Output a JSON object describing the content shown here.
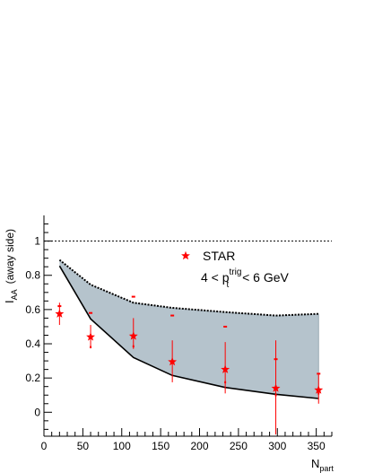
{
  "chart_data": {
    "type": "scatter",
    "title": "",
    "xlabel": "N",
    "xlabel_sub": "part",
    "ylabel": "I",
    "ylabel_sub": "AA",
    "ylabel_suffix": "(away side)",
    "xlim": [
      0,
      370
    ],
    "ylim": [
      -0.14,
      1.15
    ],
    "xticks": [
      0,
      50,
      100,
      150,
      200,
      250,
      300,
      350
    ],
    "yticks": [
      0,
      0.2,
      0.4,
      0.6,
      0.8,
      1
    ],
    "reference_line": {
      "y": 1,
      "style": "dotted"
    },
    "band": {
      "x": [
        20,
        60,
        115,
        165,
        233,
        298,
        353
      ],
      "upper": [
        0.89,
        0.745,
        0.64,
        0.61,
        0.585,
        0.565,
        0.575
      ],
      "lower": [
        0.855,
        0.545,
        0.32,
        0.215,
        0.145,
        0.105,
        0.08
      ],
      "color": "#b5c3cc"
    },
    "series": [
      {
        "name": "STAR",
        "marker": "star",
        "color": "#ff0000",
        "points": [
          {
            "x": 20,
            "y": 0.575,
            "err_low": 0.065,
            "err_high": 0.065,
            "sys_high": 0.62,
            "sys_low": 0.58
          },
          {
            "x": 60,
            "y": 0.44,
            "err_low": 0.06,
            "err_high": 0.07,
            "sys_high": 0.58,
            "sys_low": 0.38
          },
          {
            "x": 115,
            "y": 0.445,
            "err_low": 0.075,
            "err_high": 0.105,
            "sys_high": 0.675,
            "sys_low": 0.385
          },
          {
            "x": 165,
            "y": 0.295,
            "err_low": 0.12,
            "err_high": 0.125,
            "sys_high": 0.565,
            "sys_low": 0.295
          },
          {
            "x": 233,
            "y": 0.25,
            "err_low": 0.14,
            "err_high": 0.16,
            "sys_high": 0.5,
            "sys_low": 0.175
          },
          {
            "x": 298,
            "y": 0.14,
            "err_low": 0.27,
            "err_high": 0.28,
            "sys_high": 0.31,
            "sys_low": 0.1
          },
          {
            "x": 353,
            "y": 0.13,
            "err_low": 0.08,
            "err_high": 0.09,
            "sys_high": 0.225,
            "sys_low": 0.11
          }
        ]
      }
    ],
    "legend": {
      "position": "top-right",
      "label": "STAR",
      "extra_line": "4 < p",
      "extra_sup": "trig",
      "extra_sub": "t",
      "extra_tail": " < 6 GeV"
    }
  }
}
